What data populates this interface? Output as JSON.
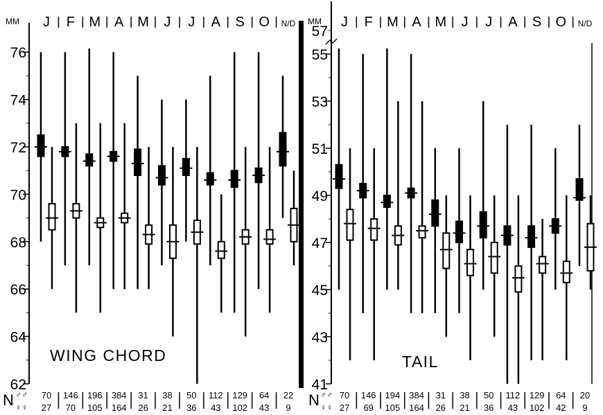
{
  "chart_data": [
    {
      "type": "box",
      "title": "WING CHORD",
      "ylabel": "MM",
      "ylim": [
        62,
        77
      ],
      "yticks": [
        62,
        64,
        66,
        68,
        70,
        72,
        74,
        76
      ],
      "categories": [
        "J",
        "F",
        "M",
        "A",
        "M",
        "J",
        "J",
        "A",
        "S",
        "O",
        "N/D"
      ],
      "n_label": "N",
      "male_symbol": "♂♂",
      "female_symbol": "♀♀",
      "n_male": [
        "70",
        "146",
        "196",
        "384",
        "31",
        "38",
        "50",
        "112",
        "129",
        "64",
        "22"
      ],
      "n_female": [
        "27",
        "70",
        "105",
        "164",
        "26",
        "21",
        "36",
        "43",
        "102",
        "43",
        "9"
      ],
      "series": [
        {
          "name": "males",
          "mean": [
            72.0,
            71.8,
            71.4,
            71.6,
            71.3,
            70.7,
            71.1,
            70.6,
            70.6,
            70.8,
            71.8
          ],
          "box_low": [
            71.6,
            71.6,
            71.2,
            71.4,
            70.8,
            70.4,
            70.8,
            70.4,
            70.3,
            70.5,
            71.2
          ],
          "box_high": [
            72.5,
            72.0,
            71.7,
            71.8,
            71.9,
            71.2,
            71.5,
            70.9,
            71.0,
            71.1,
            72.6
          ],
          "min": [
            68.0,
            67.0,
            67.0,
            66.0,
            66.0,
            67.0,
            68.0,
            67.0,
            65.0,
            66.0,
            69.0
          ],
          "max": [
            76.0,
            76.0,
            77.0,
            76.0,
            75.0,
            74.0,
            74.0,
            75.0,
            76.0,
            76.0,
            75.0
          ]
        },
        {
          "name": "females",
          "mean": [
            69.0,
            69.3,
            68.8,
            69.0,
            68.3,
            68.0,
            68.4,
            67.6,
            68.2,
            68.1,
            68.7
          ],
          "box_low": [
            68.5,
            69.0,
            68.6,
            68.8,
            67.9,
            67.3,
            67.9,
            67.3,
            67.9,
            67.9,
            68.0
          ],
          "box_high": [
            69.6,
            69.6,
            69.0,
            69.2,
            68.7,
            68.7,
            68.9,
            68.0,
            68.5,
            68.5,
            69.4
          ],
          "min": [
            66.0,
            65.0,
            65.0,
            66.0,
            66.0,
            64.0,
            62.0,
            65.0,
            64.0,
            65.0,
            67.0
          ],
          "max": [
            72.0,
            73.0,
            73.0,
            73.0,
            72.0,
            72.0,
            72.0,
            70.0,
            72.0,
            72.0,
            71.0
          ]
        }
      ]
    },
    {
      "type": "box",
      "title": "TAIL",
      "ylabel": "MM",
      "ylim": [
        41,
        57
      ],
      "yticks": [
        41,
        43,
        45,
        47,
        49,
        51,
        53,
        55
      ],
      "ybreak_label": "57",
      "categories": [
        "J",
        "F",
        "M",
        "A",
        "M",
        "J",
        "J",
        "A",
        "S",
        "O",
        "N/D"
      ],
      "n_label": "N",
      "male_symbol": "♂♂",
      "female_symbol": "♀♀",
      "n_male": [
        "70",
        "146",
        "194",
        "384",
        "31",
        "38",
        "50",
        "112",
        "129",
        "64",
        "20"
      ],
      "n_female": [
        "27",
        "69",
        "105",
        "164",
        "26",
        "21",
        "36",
        "43",
        "102",
        "42",
        "9"
      ],
      "series": [
        {
          "name": "males",
          "mean": [
            49.7,
            49.2,
            48.7,
            49.1,
            48.2,
            47.4,
            47.7,
            47.3,
            47.2,
            47.7,
            48.9
          ],
          "box_low": [
            49.3,
            48.9,
            48.5,
            48.9,
            47.7,
            47.0,
            47.2,
            46.9,
            46.8,
            47.4,
            48.8
          ],
          "box_high": [
            50.3,
            49.5,
            49.0,
            49.3,
            48.8,
            47.9,
            48.3,
            47.7,
            47.7,
            48.0,
            49.7
          ],
          "min": [
            45.0,
            44.0,
            45.0,
            44.0,
            44.0,
            44.0,
            45.0,
            41.0,
            42.0,
            45.0,
            46.0
          ],
          "max": [
            56.0,
            55.0,
            56.0,
            55.0,
            51.0,
            51.0,
            53.0,
            52.0,
            52.0,
            51.0,
            52.0
          ]
        },
        {
          "name": "females",
          "mean": [
            47.8,
            47.6,
            47.3,
            47.5,
            46.7,
            46.1,
            46.4,
            45.5,
            46.1,
            45.7,
            46.8
          ],
          "box_low": [
            47.1,
            47.1,
            46.9,
            47.2,
            45.9,
            45.6,
            45.7,
            44.9,
            45.7,
            45.3,
            45.8
          ],
          "box_high": [
            48.4,
            48.0,
            47.7,
            47.7,
            47.4,
            46.7,
            47.0,
            46.0,
            46.4,
            46.2,
            47.8
          ],
          "min": [
            42.0,
            42.0,
            45.0,
            44.0,
            43.0,
            42.0,
            43.0,
            41.0,
            42.0,
            42.0,
            45.0
          ],
          "max": [
            51.0,
            51.0,
            53.0,
            53.0,
            49.0,
            49.0,
            49.0,
            49.0,
            48.0,
            49.0,
            49.0
          ]
        }
      ]
    }
  ]
}
